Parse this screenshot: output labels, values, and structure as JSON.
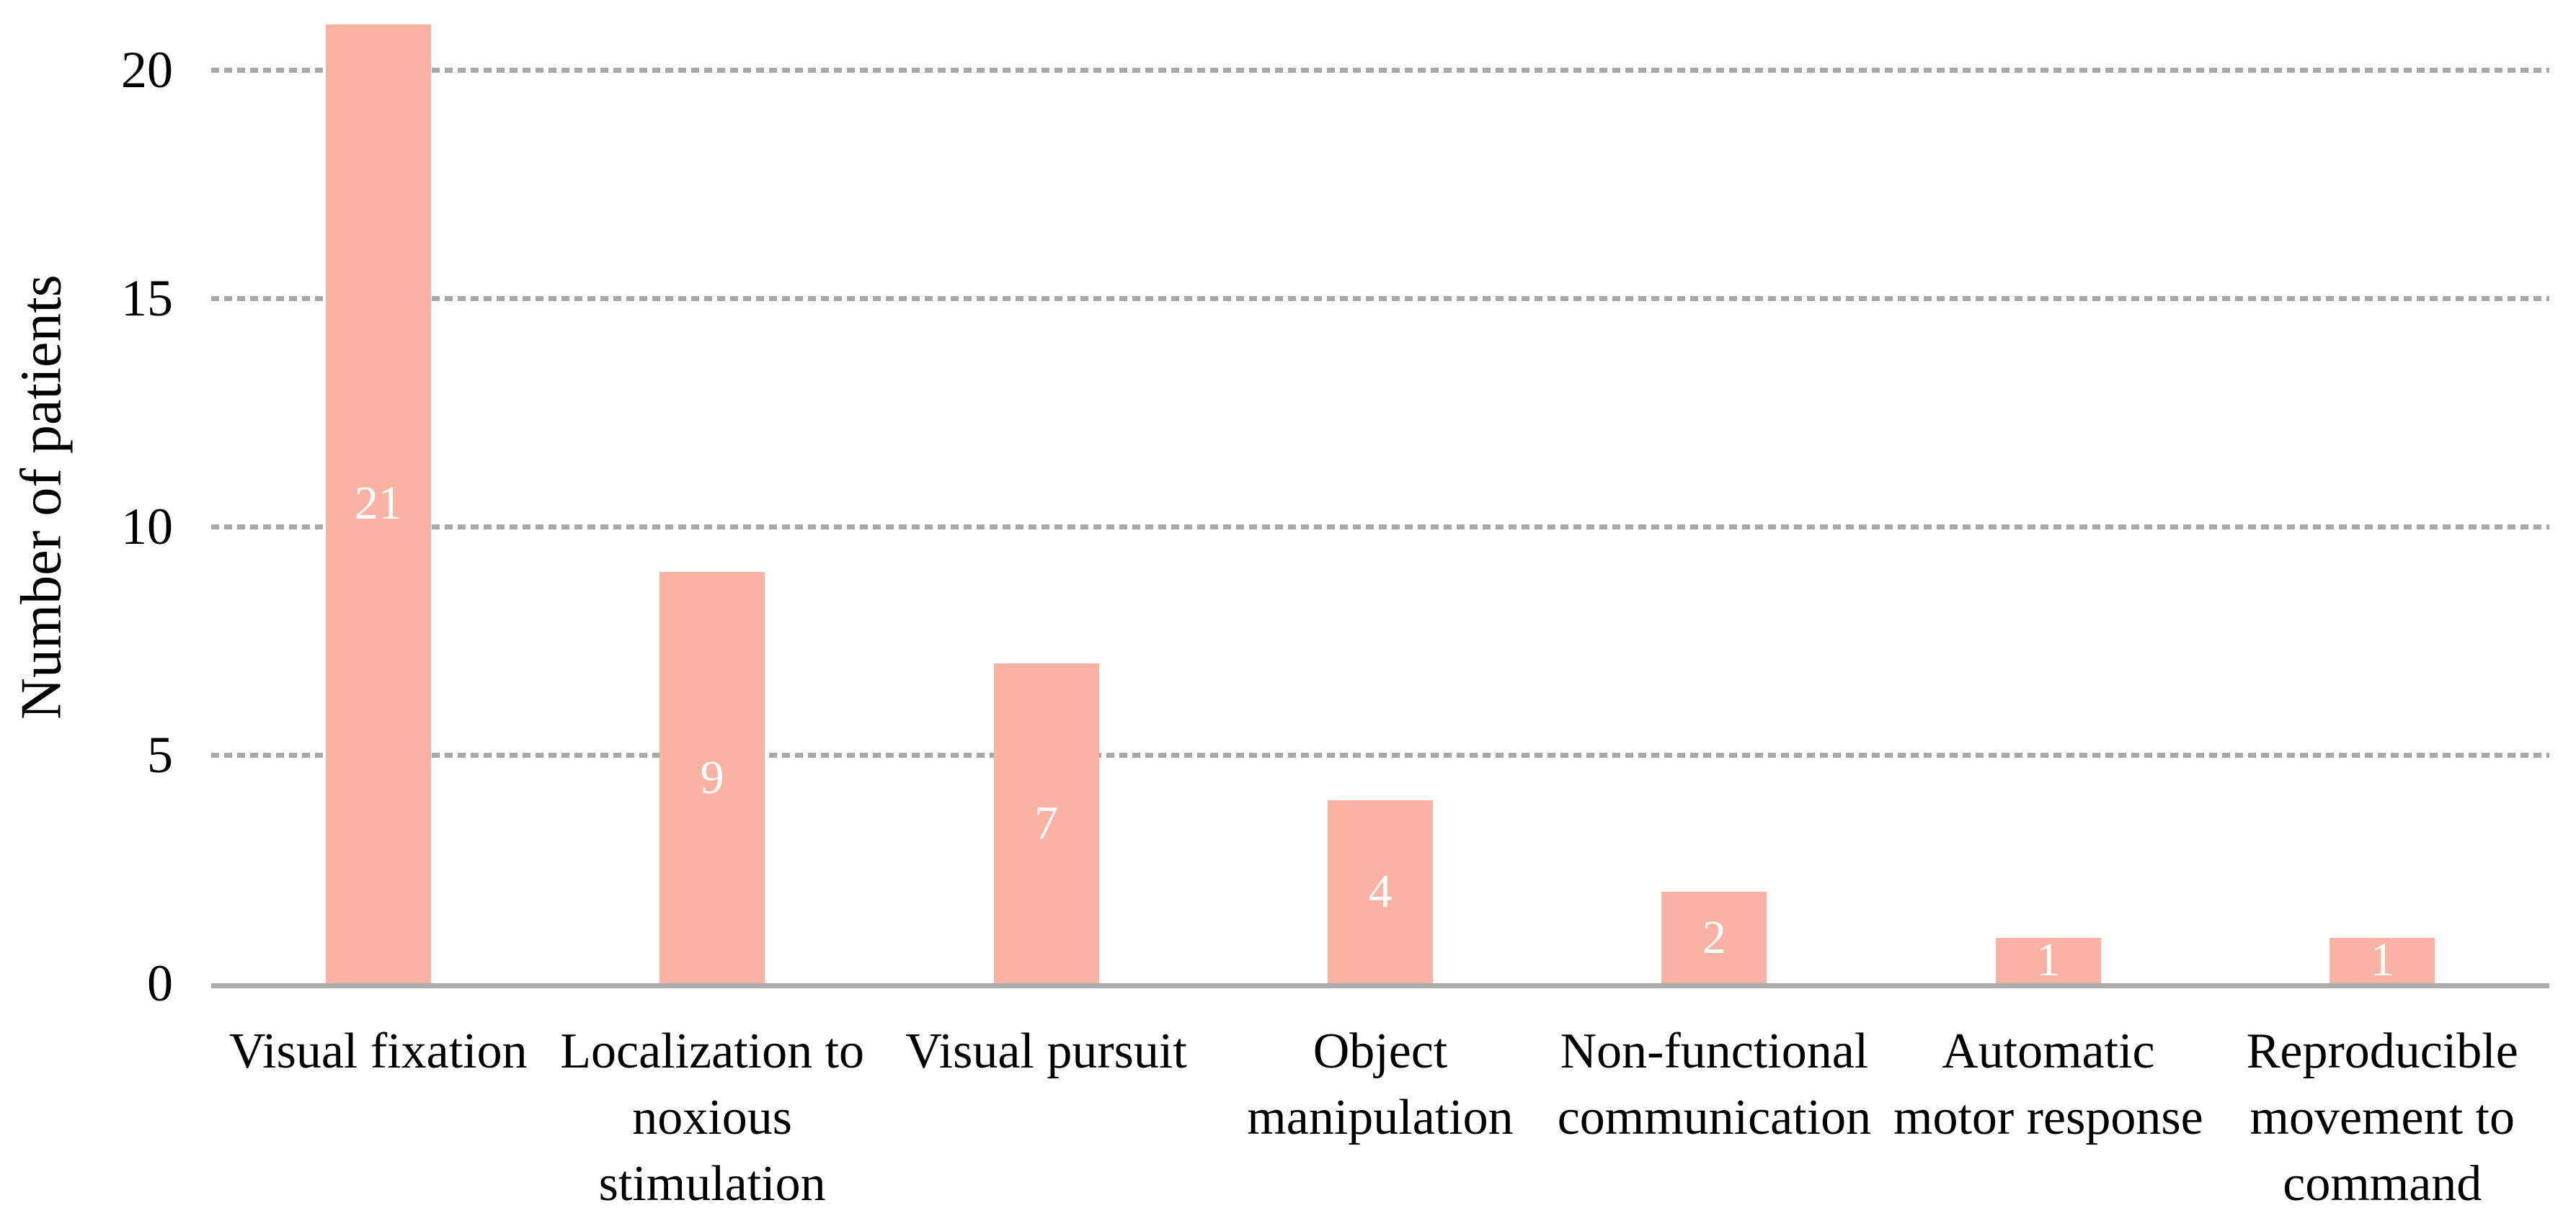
{
  "chart_data": {
    "type": "bar",
    "title": "",
    "xlabel": "",
    "ylabel": "Number of patients",
    "ylim": [
      0,
      21.5
    ],
    "yticks": [
      0,
      5,
      10,
      15,
      20
    ],
    "grid": "horizontal dotted gridlines at 5, 10, 15, 20; solid baseline at 0",
    "legend_position": "none",
    "value_label_position": "inside-center",
    "categories": [
      "Visual fixation",
      "Localization to noxious stimulation",
      "Visual pursuit",
      "Object manipulation",
      "Non-functional communication",
      "Automatic motor response",
      "Reproducible movement to command"
    ],
    "category_label_lines": [
      [
        "Visual fixation"
      ],
      [
        "Localization to",
        "noxious",
        "stimulation"
      ],
      [
        "Visual pursuit"
      ],
      [
        "Object",
        "manipulation"
      ],
      [
        "Non-functional",
        "communication"
      ],
      [
        "Automatic",
        "motor response"
      ],
      [
        "Reproducible",
        "movement to",
        "command"
      ]
    ],
    "values": [
      21,
      9,
      7,
      4,
      2,
      1,
      1
    ],
    "value_labels": [
      "21",
      "9",
      "7",
      "4",
      "2",
      "1",
      "1"
    ],
    "colors": {
      "bar": "#FBB2A3",
      "value_label": "#FFFFFF",
      "gridline": "#A8A8A8",
      "axis_line": "#ABABAB",
      "text": "#000000",
      "background": "#FFFFFF"
    }
  }
}
